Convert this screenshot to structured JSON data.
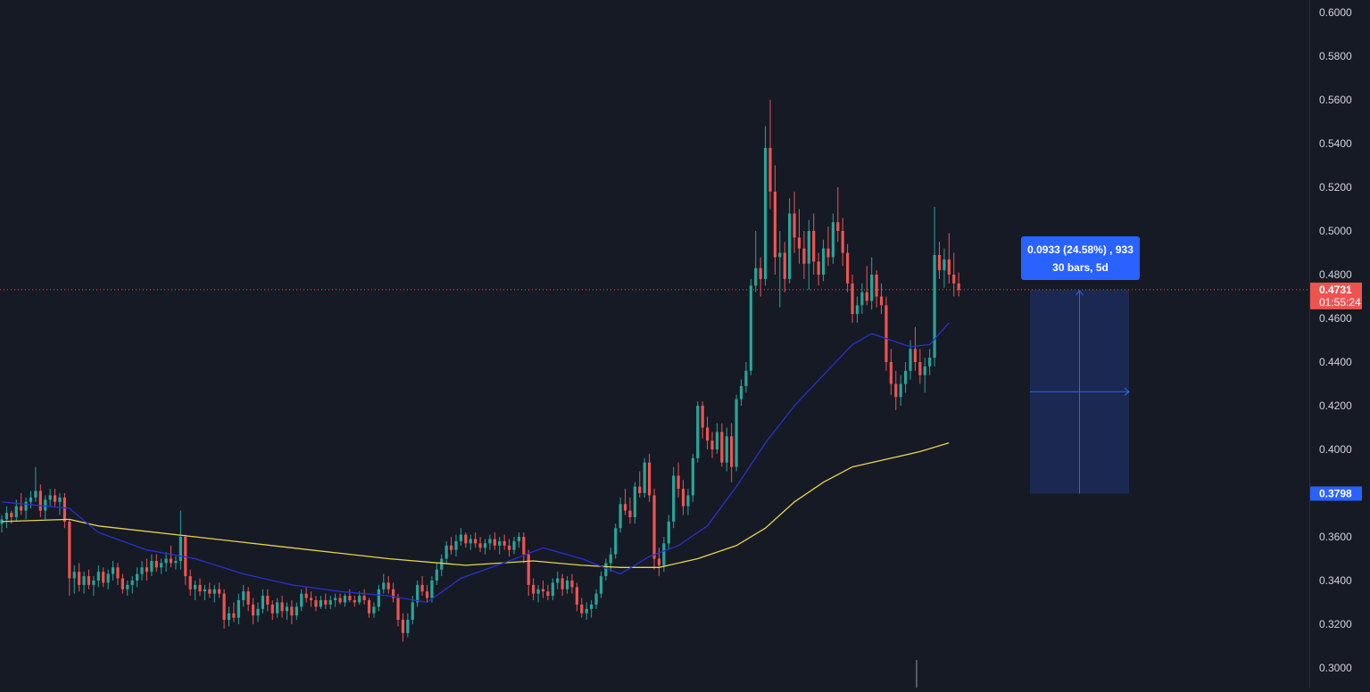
{
  "theme": {
    "background": "#161a25",
    "axis_border": "#2a2e39",
    "axis_text": "#d1d4dc",
    "up_color": "#26a69a",
    "down_color": "#ef5350",
    "ma_fast_color": "#2b2fcf",
    "ma_slow_color": "#e8d44d",
    "measure_color": "#2962ff",
    "measure_fill": "#1c2c5a"
  },
  "chart_data": {
    "type": "candlestick",
    "y_axis": {
      "range": [
        0.296,
        0.6
      ],
      "scale": "linear",
      "position": "right",
      "ticks": [
        "0.6000",
        "0.5800",
        "0.5600",
        "0.5400",
        "0.5200",
        "0.5000",
        "0.4800",
        "0.4600",
        "0.4400",
        "0.4200",
        "0.4000",
        "0.3800",
        "0.3600",
        "0.3400",
        "0.3200",
        "0.3000"
      ]
    },
    "candles": [
      [
        0.366,
        0.37,
        0.362,
        0.368
      ],
      [
        0.368,
        0.374,
        0.364,
        0.371
      ],
      [
        0.371,
        0.372,
        0.366,
        0.369
      ],
      [
        0.369,
        0.377,
        0.367,
        0.374
      ],
      [
        0.374,
        0.38,
        0.37,
        0.372
      ],
      [
        0.372,
        0.378,
        0.368,
        0.376
      ],
      [
        0.376,
        0.381,
        0.373,
        0.378
      ],
      [
        0.378,
        0.392,
        0.376,
        0.381
      ],
      [
        0.381,
        0.384,
        0.369,
        0.372
      ],
      [
        0.372,
        0.379,
        0.368,
        0.377
      ],
      [
        0.377,
        0.382,
        0.374,
        0.379
      ],
      [
        0.379,
        0.382,
        0.374,
        0.376
      ],
      [
        0.376,
        0.38,
        0.37,
        0.378
      ],
      [
        0.378,
        0.38,
        0.364,
        0.367
      ],
      [
        0.367,
        0.368,
        0.333,
        0.341
      ],
      [
        0.341,
        0.347,
        0.334,
        0.344
      ],
      [
        0.344,
        0.348,
        0.335,
        0.338
      ],
      [
        0.338,
        0.344,
        0.334,
        0.342
      ],
      [
        0.342,
        0.345,
        0.336,
        0.338
      ],
      [
        0.338,
        0.342,
        0.333,
        0.34
      ],
      [
        0.34,
        0.347,
        0.337,
        0.344
      ],
      [
        0.344,
        0.346,
        0.337,
        0.339
      ],
      [
        0.339,
        0.345,
        0.336,
        0.343
      ],
      [
        0.343,
        0.349,
        0.34,
        0.346
      ],
      [
        0.346,
        0.348,
        0.338,
        0.341
      ],
      [
        0.341,
        0.343,
        0.334,
        0.336
      ],
      [
        0.336,
        0.34,
        0.333,
        0.338
      ],
      [
        0.338,
        0.342,
        0.334,
        0.34
      ],
      [
        0.34,
        0.346,
        0.337,
        0.343
      ],
      [
        0.343,
        0.349,
        0.34,
        0.346
      ],
      [
        0.346,
        0.35,
        0.34,
        0.344
      ],
      [
        0.344,
        0.352,
        0.342,
        0.349
      ],
      [
        0.349,
        0.352,
        0.344,
        0.346
      ],
      [
        0.346,
        0.35,
        0.343,
        0.348
      ],
      [
        0.348,
        0.353,
        0.344,
        0.35
      ],
      [
        0.35,
        0.356,
        0.346,
        0.348
      ],
      [
        0.348,
        0.351,
        0.345,
        0.349
      ],
      [
        0.349,
        0.372,
        0.345,
        0.36
      ],
      [
        0.36,
        0.361,
        0.338,
        0.342
      ],
      [
        0.342,
        0.345,
        0.333,
        0.336
      ],
      [
        0.336,
        0.34,
        0.331,
        0.338
      ],
      [
        0.338,
        0.341,
        0.333,
        0.335
      ],
      [
        0.335,
        0.338,
        0.331,
        0.336
      ],
      [
        0.336,
        0.339,
        0.332,
        0.334
      ],
      [
        0.334,
        0.338,
        0.33,
        0.336
      ],
      [
        0.336,
        0.339,
        0.332,
        0.334
      ],
      [
        0.334,
        0.336,
        0.318,
        0.322
      ],
      [
        0.322,
        0.328,
        0.319,
        0.325
      ],
      [
        0.325,
        0.33,
        0.321,
        0.323
      ],
      [
        0.323,
        0.334,
        0.32,
        0.331
      ],
      [
        0.331,
        0.338,
        0.328,
        0.335
      ],
      [
        0.335,
        0.337,
        0.326,
        0.329
      ],
      [
        0.329,
        0.332,
        0.32,
        0.324
      ],
      [
        0.324,
        0.33,
        0.321,
        0.327
      ],
      [
        0.327,
        0.336,
        0.325,
        0.333
      ],
      [
        0.333,
        0.336,
        0.326,
        0.329
      ],
      [
        0.329,
        0.331,
        0.322,
        0.325
      ],
      [
        0.325,
        0.332,
        0.323,
        0.33
      ],
      [
        0.33,
        0.333,
        0.323,
        0.326
      ],
      [
        0.326,
        0.33,
        0.322,
        0.328
      ],
      [
        0.328,
        0.331,
        0.32,
        0.324
      ],
      [
        0.324,
        0.33,
        0.322,
        0.328
      ],
      [
        0.328,
        0.336,
        0.326,
        0.334
      ],
      [
        0.334,
        0.337,
        0.33,
        0.332
      ],
      [
        0.332,
        0.335,
        0.328,
        0.331
      ],
      [
        0.331,
        0.333,
        0.326,
        0.328
      ],
      [
        0.328,
        0.333,
        0.327,
        0.331
      ],
      [
        0.331,
        0.334,
        0.327,
        0.329
      ],
      [
        0.329,
        0.333,
        0.327,
        0.331
      ],
      [
        0.331,
        0.334,
        0.328,
        0.332
      ],
      [
        0.332,
        0.334,
        0.329,
        0.33
      ],
      [
        0.33,
        0.334,
        0.328,
        0.333
      ],
      [
        0.333,
        0.336,
        0.33,
        0.331
      ],
      [
        0.331,
        0.333,
        0.328,
        0.33
      ],
      [
        0.33,
        0.335,
        0.329,
        0.333
      ],
      [
        0.333,
        0.336,
        0.329,
        0.331
      ],
      [
        0.331,
        0.332,
        0.323,
        0.325
      ],
      [
        0.325,
        0.33,
        0.323,
        0.328
      ],
      [
        0.328,
        0.338,
        0.326,
        0.336
      ],
      [
        0.336,
        0.343,
        0.334,
        0.339
      ],
      [
        0.339,
        0.342,
        0.334,
        0.336
      ],
      [
        0.336,
        0.339,
        0.33,
        0.332
      ],
      [
        0.332,
        0.334,
        0.319,
        0.322
      ],
      [
        0.322,
        0.325,
        0.312,
        0.316
      ],
      [
        0.316,
        0.325,
        0.314,
        0.322
      ],
      [
        0.322,
        0.333,
        0.32,
        0.33
      ],
      [
        0.33,
        0.34,
        0.328,
        0.338
      ],
      [
        0.338,
        0.342,
        0.333,
        0.335
      ],
      [
        0.335,
        0.338,
        0.33,
        0.332
      ],
      [
        0.332,
        0.342,
        0.33,
        0.34
      ],
      [
        0.34,
        0.348,
        0.338,
        0.345
      ],
      [
        0.345,
        0.352,
        0.342,
        0.35
      ],
      [
        0.35,
        0.358,
        0.348,
        0.356
      ],
      [
        0.356,
        0.36,
        0.352,
        0.354
      ],
      [
        0.354,
        0.361,
        0.351,
        0.358
      ],
      [
        0.358,
        0.364,
        0.356,
        0.361
      ],
      [
        0.361,
        0.362,
        0.355,
        0.357
      ],
      [
        0.357,
        0.361,
        0.354,
        0.359
      ],
      [
        0.359,
        0.362,
        0.355,
        0.357
      ],
      [
        0.357,
        0.36,
        0.353,
        0.355
      ],
      [
        0.355,
        0.359,
        0.352,
        0.357
      ],
      [
        0.357,
        0.361,
        0.354,
        0.359
      ],
      [
        0.359,
        0.362,
        0.354,
        0.356
      ],
      [
        0.356,
        0.36,
        0.352,
        0.358
      ],
      [
        0.358,
        0.361,
        0.354,
        0.356
      ],
      [
        0.356,
        0.359,
        0.351,
        0.354
      ],
      [
        0.354,
        0.36,
        0.352,
        0.358
      ],
      [
        0.358,
        0.362,
        0.355,
        0.36
      ],
      [
        0.36,
        0.362,
        0.348,
        0.352
      ],
      [
        0.352,
        0.354,
        0.333,
        0.338
      ],
      [
        0.338,
        0.341,
        0.331,
        0.334
      ],
      [
        0.334,
        0.338,
        0.33,
        0.336
      ],
      [
        0.336,
        0.34,
        0.332,
        0.335
      ],
      [
        0.335,
        0.338,
        0.331,
        0.333
      ],
      [
        0.333,
        0.341,
        0.331,
        0.339
      ],
      [
        0.339,
        0.344,
        0.336,
        0.341
      ],
      [
        0.341,
        0.343,
        0.333,
        0.336
      ],
      [
        0.336,
        0.342,
        0.334,
        0.34
      ],
      [
        0.34,
        0.343,
        0.334,
        0.337
      ],
      [
        0.337,
        0.339,
        0.326,
        0.329
      ],
      [
        0.329,
        0.332,
        0.323,
        0.325
      ],
      [
        0.325,
        0.33,
        0.322,
        0.327
      ],
      [
        0.327,
        0.331,
        0.323,
        0.329
      ],
      [
        0.329,
        0.336,
        0.327,
        0.334
      ],
      [
        0.334,
        0.344,
        0.332,
        0.342
      ],
      [
        0.342,
        0.35,
        0.34,
        0.348
      ],
      [
        0.348,
        0.355,
        0.344,
        0.352
      ],
      [
        0.352,
        0.366,
        0.35,
        0.364
      ],
      [
        0.364,
        0.378,
        0.362,
        0.375
      ],
      [
        0.375,
        0.382,
        0.37,
        0.372
      ],
      [
        0.372,
        0.378,
        0.366,
        0.369
      ],
      [
        0.369,
        0.385,
        0.366,
        0.383
      ],
      [
        0.383,
        0.39,
        0.378,
        0.38
      ],
      [
        0.38,
        0.396,
        0.378,
        0.394
      ],
      [
        0.394,
        0.398,
        0.376,
        0.379
      ],
      [
        0.379,
        0.382,
        0.345,
        0.35
      ],
      [
        0.35,
        0.355,
        0.342,
        0.347
      ],
      [
        0.347,
        0.36,
        0.344,
        0.357
      ],
      [
        0.357,
        0.37,
        0.354,
        0.367
      ],
      [
        0.367,
        0.392,
        0.364,
        0.388
      ],
      [
        0.388,
        0.394,
        0.378,
        0.382
      ],
      [
        0.382,
        0.386,
        0.37,
        0.374
      ],
      [
        0.374,
        0.382,
        0.37,
        0.379
      ],
      [
        0.379,
        0.398,
        0.376,
        0.396
      ],
      [
        0.396,
        0.422,
        0.394,
        0.42
      ],
      [
        0.42,
        0.422,
        0.405,
        0.41
      ],
      [
        0.41,
        0.415,
        0.4,
        0.404
      ],
      [
        0.404,
        0.408,
        0.396,
        0.4
      ],
      [
        0.4,
        0.412,
        0.398,
        0.408
      ],
      [
        0.408,
        0.412,
        0.392,
        0.394
      ],
      [
        0.394,
        0.41,
        0.39,
        0.406
      ],
      [
        0.406,
        0.412,
        0.385,
        0.392
      ],
      [
        0.392,
        0.425,
        0.39,
        0.423
      ],
      [
        0.423,
        0.432,
        0.42,
        0.429
      ],
      [
        0.429,
        0.44,
        0.426,
        0.436
      ],
      [
        0.436,
        0.478,
        0.434,
        0.475
      ],
      [
        0.475,
        0.5,
        0.472,
        0.483
      ],
      [
        0.483,
        0.488,
        0.47,
        0.478
      ],
      [
        0.478,
        0.548,
        0.475,
        0.538
      ],
      [
        0.538,
        0.56,
        0.51,
        0.518
      ],
      [
        0.518,
        0.53,
        0.48,
        0.488
      ],
      [
        0.488,
        0.5,
        0.465,
        0.49
      ],
      [
        0.49,
        0.495,
        0.472,
        0.478
      ],
      [
        0.478,
        0.515,
        0.476,
        0.508
      ],
      [
        0.508,
        0.518,
        0.49,
        0.497
      ],
      [
        0.497,
        0.51,
        0.485,
        0.492
      ],
      [
        0.492,
        0.5,
        0.478,
        0.485
      ],
      [
        0.485,
        0.505,
        0.473,
        0.5
      ],
      [
        0.5,
        0.508,
        0.48,
        0.486
      ],
      [
        0.486,
        0.49,
        0.475,
        0.48
      ],
      [
        0.48,
        0.496,
        0.477,
        0.492
      ],
      [
        0.492,
        0.502,
        0.484,
        0.488
      ],
      [
        0.488,
        0.508,
        0.485,
        0.504
      ],
      [
        0.504,
        0.52,
        0.495,
        0.5
      ],
      [
        0.5,
        0.506,
        0.484,
        0.49
      ],
      [
        0.49,
        0.494,
        0.472,
        0.476
      ],
      [
        0.476,
        0.48,
        0.458,
        0.462
      ],
      [
        0.462,
        0.47,
        0.458,
        0.466
      ],
      [
        0.466,
        0.476,
        0.462,
        0.472
      ],
      [
        0.472,
        0.484,
        0.466,
        0.468
      ],
      [
        0.468,
        0.488,
        0.464,
        0.48
      ],
      [
        0.48,
        0.482,
        0.465,
        0.47
      ],
      [
        0.47,
        0.476,
        0.462,
        0.466
      ],
      [
        0.466,
        0.47,
        0.436,
        0.44
      ],
      [
        0.44,
        0.446,
        0.425,
        0.43
      ],
      [
        0.43,
        0.436,
        0.418,
        0.424
      ],
      [
        0.424,
        0.434,
        0.42,
        0.43
      ],
      [
        0.43,
        0.44,
        0.426,
        0.436
      ],
      [
        0.436,
        0.45,
        0.432,
        0.446
      ],
      [
        0.446,
        0.456,
        0.436,
        0.44
      ],
      [
        0.44,
        0.446,
        0.43,
        0.434
      ],
      [
        0.434,
        0.442,
        0.426,
        0.438
      ],
      [
        0.438,
        0.446,
        0.434,
        0.442
      ],
      [
        0.442,
        0.511,
        0.438,
        0.489
      ],
      [
        0.489,
        0.495,
        0.478,
        0.482
      ],
      [
        0.482,
        0.492,
        0.474,
        0.487
      ],
      [
        0.487,
        0.499,
        0.476,
        0.48
      ],
      [
        0.48,
        0.49,
        0.47,
        0.476
      ],
      [
        0.476,
        0.481,
        0.47,
        0.473
      ]
    ],
    "ma_fast": {
      "color": "#2b2fcf",
      "points": [
        [
          0,
          0.376
        ],
        [
          14,
          0.373
        ],
        [
          20,
          0.362
        ],
        [
          30,
          0.354
        ],
        [
          40,
          0.35
        ],
        [
          50,
          0.343
        ],
        [
          60,
          0.338
        ],
        [
          70,
          0.335
        ],
        [
          80,
          0.333
        ],
        [
          88,
          0.33
        ],
        [
          95,
          0.341
        ],
        [
          105,
          0.349
        ],
        [
          112,
          0.355
        ],
        [
          120,
          0.35
        ],
        [
          128,
          0.343
        ],
        [
          134,
          0.351
        ],
        [
          140,
          0.356
        ],
        [
          146,
          0.365
        ],
        [
          152,
          0.383
        ],
        [
          158,
          0.403
        ],
        [
          164,
          0.42
        ],
        [
          170,
          0.434
        ],
        [
          176,
          0.448
        ],
        [
          180,
          0.453
        ],
        [
          184,
          0.45
        ],
        [
          188,
          0.447
        ],
        [
          192,
          0.448
        ],
        [
          196,
          0.458
        ]
      ]
    },
    "ma_slow": {
      "color": "#e8d44d",
      "points": [
        [
          0,
          0.367
        ],
        [
          14,
          0.368
        ],
        [
          20,
          0.365
        ],
        [
          40,
          0.36
        ],
        [
          60,
          0.355
        ],
        [
          80,
          0.35
        ],
        [
          96,
          0.347
        ],
        [
          110,
          0.349
        ],
        [
          120,
          0.347
        ],
        [
          128,
          0.346
        ],
        [
          136,
          0.346
        ],
        [
          144,
          0.35
        ],
        [
          152,
          0.356
        ],
        [
          158,
          0.364
        ],
        [
          164,
          0.376
        ],
        [
          170,
          0.385
        ],
        [
          176,
          0.392
        ],
        [
          182,
          0.395
        ],
        [
          190,
          0.399
        ],
        [
          196,
          0.403
        ]
      ]
    },
    "price_lines": [
      {
        "label": "0.4731",
        "color": "#ef5350",
        "countdown": "01:55:24"
      },
      {
        "label": "0.3798",
        "color": "#2962ff"
      }
    ],
    "current_price": 0.4731,
    "measure": {
      "from_price": 0.3798,
      "to_price": 0.4731,
      "line1": "0.0933 (24.58%) , 933",
      "line2": "30 bars, 5d"
    }
  }
}
